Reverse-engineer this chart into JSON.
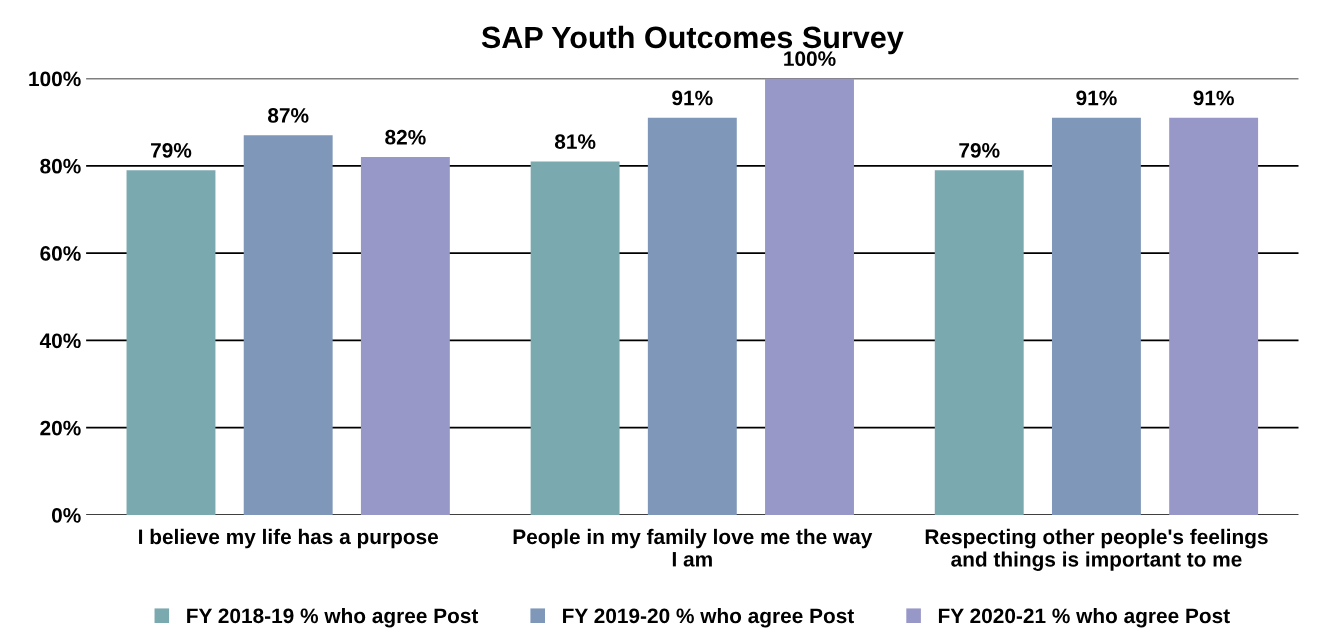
{
  "chart_data": {
    "type": "bar",
    "title": "SAP Youth Outcomes Survey",
    "categories": [
      "I believe my life has a purpose",
      "People in my family love me the way\nI am",
      "Respecting other people's feelings\nand things is important to me"
    ],
    "series": [
      {
        "name": "FY 2018-19 % who agree Post",
        "color": "#7ba9b0",
        "values": [
          79,
          81,
          79
        ],
        "value_labels": [
          "79%",
          "81%",
          "79%"
        ]
      },
      {
        "name": "FY 2019-20 % who agree Post",
        "color": "#7f97b8",
        "values": [
          87,
          91,
          91
        ],
        "value_labels": [
          "87%",
          "91%",
          "91%"
        ]
      },
      {
        "name": "FY 2020-21 % who agree Post",
        "color": "#9797c8",
        "values": [
          82,
          100,
          91
        ],
        "value_labels": [
          "82%",
          "100%",
          "91%"
        ]
      }
    ],
    "ylim": [
      0,
      100
    ],
    "yticks": [
      {
        "value": 0,
        "label": "0%"
      },
      {
        "value": 20,
        "label": "20%"
      },
      {
        "value": 40,
        "label": "40%"
      },
      {
        "value": 60,
        "label": "60%"
      },
      {
        "value": 80,
        "label": "80%"
      },
      {
        "value": 100,
        "label": "100%"
      }
    ],
    "grid": "y",
    "legend": "bottom"
  }
}
